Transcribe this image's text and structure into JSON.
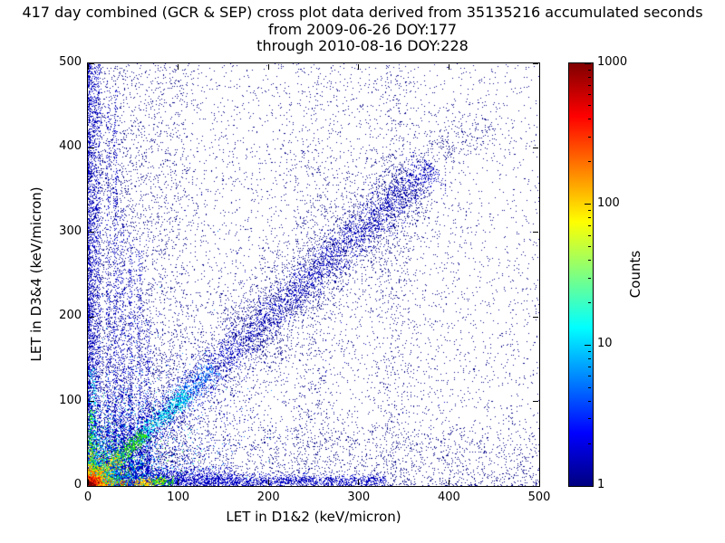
{
  "title": {
    "line1": "417 day combined (GCR & SEP) cross plot data derived from 35135216 accumulated seconds",
    "line2": "from 2009-06-26 DOY:177",
    "line3": "through 2010-08-16 DOY:228"
  },
  "chart_data": {
    "type": "heatmap",
    "title": "417 day combined (GCR & SEP) cross plot data derived from 35135216 accumulated seconds from 2009-06-26 DOY:177 through 2010-08-16 DOY:228",
    "xlabel": "LET in D1&2 (keV/micron)",
    "ylabel": "LET in D3&4 (keV/micron)",
    "xlim": [
      0,
      500
    ],
    "ylim": [
      0,
      500
    ],
    "x_ticks": [
      0,
      100,
      200,
      300,
      400,
      500
    ],
    "y_ticks": [
      0,
      100,
      200,
      300,
      400,
      500
    ],
    "grid": false,
    "colorbar": {
      "label": "Counts",
      "scale": "log",
      "min": 1,
      "max": 1000,
      "ticks": [
        1,
        10,
        100,
        1000
      ],
      "colormap": "jet",
      "gradient": [
        {
          "pos": 0,
          "color": "#000080"
        },
        {
          "pos": 12.5,
          "color": "#0000ff"
        },
        {
          "pos": 37.5,
          "color": "#00ffff"
        },
        {
          "pos": 62.5,
          "color": "#ffff00"
        },
        {
          "pos": 87.5,
          "color": "#ff0000"
        },
        {
          "pos": 100,
          "color": "#800000"
        }
      ]
    },
    "seed": 1337,
    "features": [
      {
        "kind": "uniform",
        "x": [
          0,
          500
        ],
        "y": [
          0,
          500
        ],
        "count": 5200,
        "color": "#000085",
        "xbias": 1.6,
        "ybias": 1.4
      },
      {
        "kind": "uniform",
        "x": [
          0,
          500
        ],
        "y": [
          0,
          500
        ],
        "count": 2600,
        "color": "#000085",
        "xbias": 1,
        "ybias": 1
      },
      {
        "kind": "uniform",
        "x": [
          0,
          110
        ],
        "y": [
          0,
          500
        ],
        "count": 2200,
        "color": "#000085",
        "xbias": 1.3,
        "ybias": 1.2
      },
      {
        "kind": "uniform",
        "x": [
          0,
          500
        ],
        "y": [
          0,
          70
        ],
        "count": 1400,
        "color": "#000085",
        "xbias": 1.3,
        "ybias": 1.5
      },
      {
        "kind": "uniform",
        "x": [
          0,
          14
        ],
        "y": [
          0,
          500
        ],
        "count": 2400,
        "color": "#0000c8",
        "xbias": 1.8,
        "ybias": 1.1
      },
      {
        "kind": "streak_v",
        "x": 340,
        "y": [
          0,
          500
        ],
        "sigmaX": 12,
        "count": 500,
        "ybias": 1,
        "color": "#000085"
      },
      {
        "kind": "streak_v",
        "x": 250,
        "y": [
          0,
          500
        ],
        "sigmaX": 15,
        "count": 400,
        "ybias": 1.1,
        "color": "#000085"
      },
      {
        "kind": "band_diag",
        "from": [
          10,
          10
        ],
        "to": [
          380,
          380
        ],
        "sigma": 11,
        "count": 3600,
        "color": "#0000c8",
        "tbias": 0.9
      },
      {
        "kind": "band_diag",
        "from": [
          170,
          170
        ],
        "to": [
          365,
          365
        ],
        "sigma": 26,
        "count": 2200,
        "color": "#000085",
        "tbias": 1
      },
      {
        "kind": "band_diag",
        "from": [
          370,
          370
        ],
        "to": [
          440,
          440
        ],
        "sigma": 14,
        "count": 260,
        "color": "#000085",
        "tbias": 1
      },
      {
        "kind": "band_diag",
        "from": [
          40,
          40
        ],
        "to": [
          200,
          200
        ],
        "sigma": 30,
        "count": 900,
        "color": "#000085",
        "tbias": 1
      },
      {
        "kind": "streak_v",
        "x": 22,
        "y": [
          20,
          480
        ],
        "sigmaX": 1.4,
        "count": 500,
        "color": "#0000c8",
        "ybias": 2.4
      },
      {
        "kind": "streak_v",
        "x": 30,
        "y": [
          20,
          470
        ],
        "sigmaX": 1.6,
        "count": 700,
        "color": "#0000c8",
        "ybias": 2.2
      },
      {
        "kind": "streak_v",
        "x": 38,
        "y": [
          20,
          330
        ],
        "sigmaX": 1.6,
        "count": 450,
        "color": "#0000c8",
        "ybias": 2
      },
      {
        "kind": "streak_v",
        "x": 47,
        "y": [
          20,
          300
        ],
        "sigmaX": 1.8,
        "count": 420,
        "color": "#0000c8",
        "ybias": 2
      },
      {
        "kind": "streak_v",
        "x": 57,
        "y": [
          20,
          280
        ],
        "sigmaX": 1.8,
        "count": 380,
        "color": "#0000c8",
        "ybias": 2
      },
      {
        "kind": "streak_v",
        "x": 66,
        "y": [
          15,
          200
        ],
        "sigmaX": 1.8,
        "count": 300,
        "color": "#0000c8",
        "ybias": 1.8
      },
      {
        "kind": "streak_h",
        "y": 6,
        "x": [
          0,
          330
        ],
        "sigmaY": 4,
        "count": 2400,
        "color": "#0000c8",
        "xbias": 1.4
      },
      {
        "kind": "streak_h",
        "y": 14,
        "x": [
          0,
          160
        ],
        "sigmaY": 5,
        "count": 700,
        "color": "#0000c8",
        "xbias": 1.2
      },
      {
        "kind": "band_diag",
        "from": [
          100,
          100
        ],
        "to": [
          140,
          140
        ],
        "sigma": 6,
        "count": 300,
        "color": "#0080ff",
        "tbias": 1
      },
      {
        "kind": "band_diag",
        "from": [
          55,
          55
        ],
        "to": [
          110,
          110
        ],
        "sigma": 5,
        "count": 600,
        "color": "#00d8e8",
        "tbias": 1
      },
      {
        "kind": "band_diag",
        "from": [
          30,
          30
        ],
        "to": [
          62,
          62
        ],
        "sigma": 4,
        "count": 500,
        "color": "#30e010",
        "tbias": 1
      },
      {
        "kind": "band_diag",
        "from": [
          12,
          12
        ],
        "to": [
          36,
          36
        ],
        "sigma": 3.5,
        "count": 450,
        "color": "#ffe000",
        "tbias": 1
      },
      {
        "kind": "band_diag",
        "from": [
          2,
          2
        ],
        "to": [
          16,
          16
        ],
        "sigma": 3,
        "count": 350,
        "color": "#ff9000",
        "tbias": 1
      },
      {
        "kind": "streak_h",
        "y": 3,
        "x": [
          0,
          40
        ],
        "sigmaY": 2,
        "count": 300,
        "color": "#ff2000",
        "xbias": 1
      },
      {
        "kind": "streak_h",
        "y": 4,
        "x": [
          25,
          70
        ],
        "sigmaY": 2.5,
        "count": 280,
        "color": "#ff9000",
        "xbias": 1
      },
      {
        "kind": "streak_h",
        "y": 5,
        "x": [
          55,
          85
        ],
        "sigmaY": 2.5,
        "count": 200,
        "color": "#ffe000",
        "xbias": 1
      },
      {
        "kind": "streak_h",
        "y": 5,
        "x": [
          70,
          95
        ],
        "sigmaY": 2.5,
        "count": 140,
        "color": "#30e010",
        "xbias": 1
      },
      {
        "kind": "streak_v",
        "x": 5,
        "y": [
          20,
          140
        ],
        "sigmaX": 2.5,
        "count": 240,
        "color": "#00d8e8",
        "ybias": 1.2
      },
      {
        "kind": "streak_v",
        "x": 3,
        "y": [
          0,
          90
        ],
        "sigmaX": 2,
        "count": 260,
        "color": "#30e010",
        "ybias": 1.2
      },
      {
        "kind": "streak_v",
        "x": 2,
        "y": [
          0,
          50
        ],
        "sigmaX": 1.5,
        "count": 200,
        "color": "#ffe000",
        "ybias": 1.2
      },
      {
        "kind": "streak_v",
        "x": 2,
        "y": [
          0,
          25
        ],
        "sigmaX": 1.5,
        "count": 150,
        "color": "#ff9000",
        "ybias": 1.2
      },
      {
        "kind": "glow",
        "layers": [
          {
            "scale": 70,
            "count": 2200,
            "color": "#0000c8"
          },
          {
            "scale": 42,
            "count": 1500,
            "color": "#0080ff"
          },
          {
            "scale": 30,
            "count": 1300,
            "color": "#00d8e8"
          },
          {
            "scale": 21,
            "count": 1100,
            "color": "#30e010"
          },
          {
            "scale": 14,
            "count": 900,
            "color": "#ffe000"
          },
          {
            "scale": 9,
            "count": 700,
            "color": "#ff9000"
          },
          {
            "scale": 5.5,
            "count": 600,
            "color": "#ff2000"
          },
          {
            "scale": 2.8,
            "count": 400,
            "color": "#800000"
          }
        ]
      }
    ]
  }
}
